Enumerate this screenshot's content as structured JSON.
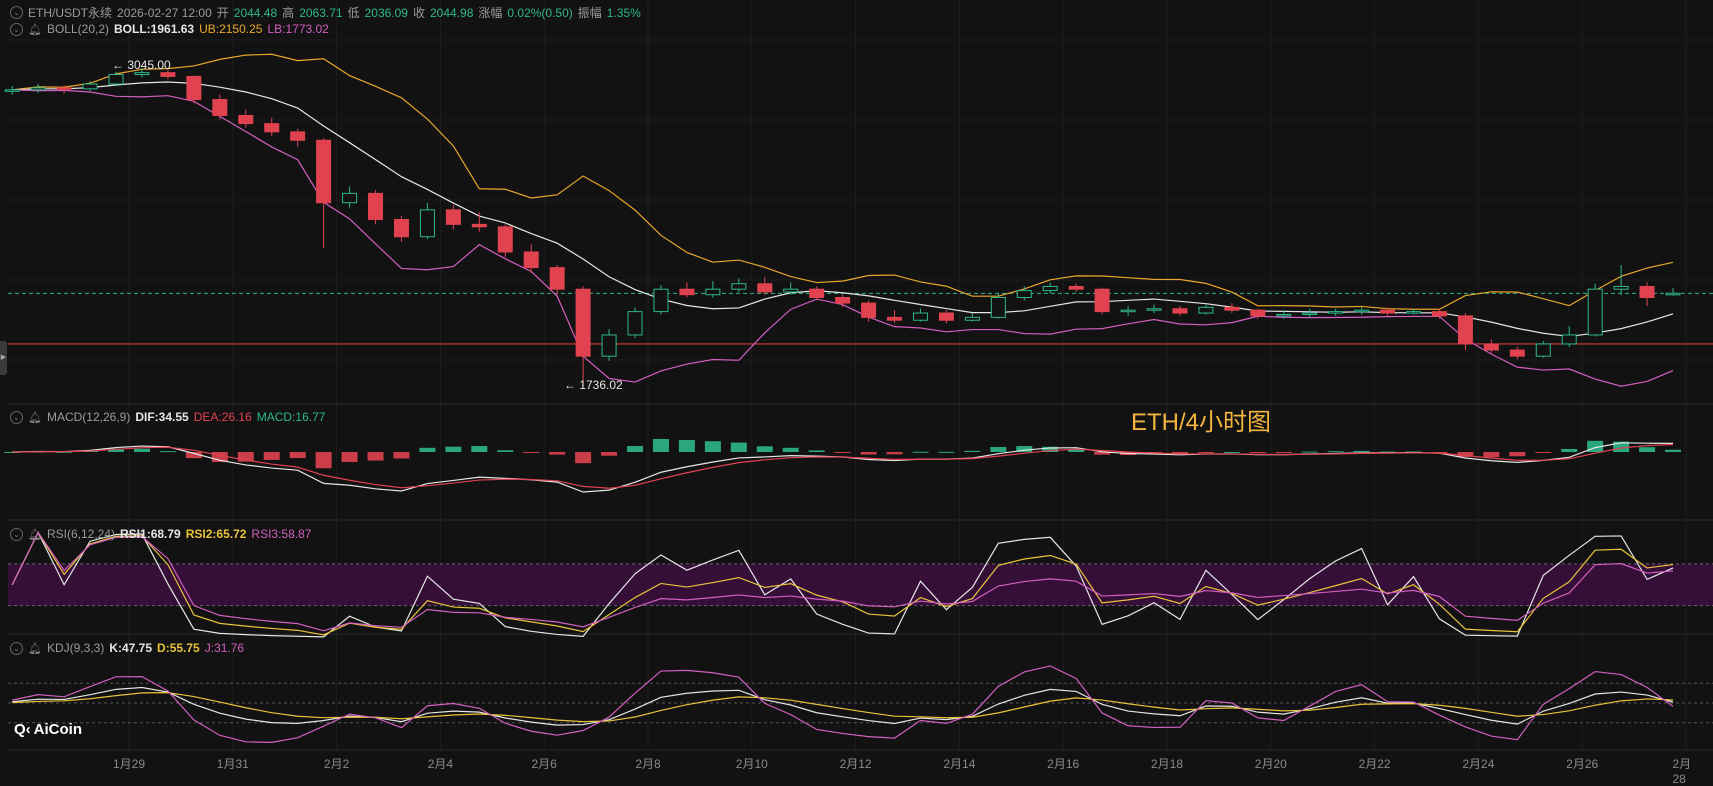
{
  "header": {
    "symbol": "ETH/USDT永续",
    "datetime": "2026-02-27 12:00",
    "open_label": "开",
    "open": "2044.48",
    "high_label": "高",
    "high": "2063.71",
    "low_label": "低",
    "low": "2036.09",
    "close_label": "收",
    "close": "2044.98",
    "change_label": "涨幅",
    "change": "0.02%(0.50)",
    "amplitude_label": "振幅",
    "amplitude": "1.35%"
  },
  "indicators": {
    "boll": {
      "name": "BOLL(20,2)",
      "mid": "BOLL:1961.63",
      "ub": "UB:2150.25",
      "lb": "LB:1773.02"
    },
    "macd": {
      "name": "MACD(12,26,9)",
      "dif": "DIF:34.55",
      "dea": "DEA:26.16",
      "macd": "MACD:16.77"
    },
    "rsi": {
      "name": "RSI(6,12,24)",
      "rsi1": "RSI1:68.79",
      "rsi2": "RSI2:65.72",
      "rsi3": "RSI3:58.87"
    },
    "kdj": {
      "name": "KDJ(9,3,3)",
      "k": "K:47.75",
      "d": "D:55.75",
      "j": "J:31.76"
    }
  },
  "annotations": {
    "overlay_title": "ETH/4小时图",
    "max_marker": "← 3045.00",
    "min_marker": "← 1736.02"
  },
  "logo": "AiCoin",
  "colors": {
    "up": "#2eb88a",
    "down": "#e0424f",
    "boll_mid": "#e6e6e6",
    "boll_ub": "#e9a72a",
    "boll_lb": "#d35fc0",
    "overlay": "#f4b53f"
  },
  "chart_data": {
    "type": "candlestick",
    "price_scale": "log",
    "current_price": 2044.98,
    "reference_line": 1870,
    "x_tick_labels": [
      "1月29",
      "1月31",
      "2月2",
      "2月4",
      "2月6",
      "2月8",
      "2月10",
      "2月12",
      "2月14",
      "2月16",
      "2月18",
      "2月20",
      "2月22",
      "2月24",
      "2月26",
      "2月28"
    ],
    "candles_ohlc": [
      [
        2925,
        2950,
        2905,
        2930
      ],
      [
        2930,
        2960,
        2915,
        2940
      ],
      [
        2940,
        2955,
        2910,
        2935
      ],
      [
        2935,
        2975,
        2925,
        2960
      ],
      [
        2960,
        3025,
        2950,
        3010
      ],
      [
        3010,
        3045,
        2995,
        3020
      ],
      [
        3020,
        3035,
        2985,
        3000
      ],
      [
        3000,
        3005,
        2860,
        2880
      ],
      [
        2880,
        2905,
        2780,
        2800
      ],
      [
        2800,
        2830,
        2740,
        2760
      ],
      [
        2760,
        2790,
        2700,
        2720
      ],
      [
        2720,
        2735,
        2650,
        2680
      ],
      [
        2680,
        2690,
        2215,
        2400
      ],
      [
        2400,
        2470,
        2380,
        2440
      ],
      [
        2440,
        2455,
        2310,
        2330
      ],
      [
        2330,
        2345,
        2240,
        2260
      ],
      [
        2260,
        2400,
        2250,
        2370
      ],
      [
        2370,
        2390,
        2290,
        2310
      ],
      [
        2310,
        2360,
        2280,
        2300
      ],
      [
        2300,
        2310,
        2180,
        2200
      ],
      [
        2200,
        2230,
        2120,
        2140
      ],
      [
        2140,
        2150,
        2040,
        2060
      ],
      [
        2060,
        2070,
        1736.02,
        1830
      ],
      [
        1830,
        1920,
        1815,
        1900
      ],
      [
        1900,
        1995,
        1890,
        1980
      ],
      [
        1980,
        2075,
        1970,
        2060
      ],
      [
        2060,
        2085,
        2030,
        2040
      ],
      [
        2040,
        2090,
        2030,
        2060
      ],
      [
        2060,
        2100,
        2050,
        2080
      ],
      [
        2080,
        2105,
        2040,
        2050
      ],
      [
        2050,
        2085,
        2040,
        2060
      ],
      [
        2060,
        2070,
        2020,
        2030
      ],
      [
        2030,
        2040,
        1995,
        2010
      ],
      [
        2010,
        2020,
        1945,
        1960
      ],
      [
        1960,
        1985,
        1940,
        1950
      ],
      [
        1950,
        1990,
        1945,
        1975
      ],
      [
        1975,
        1985,
        1940,
        1950
      ],
      [
        1950,
        1975,
        1945,
        1960
      ],
      [
        1960,
        2045,
        1955,
        2030
      ],
      [
        2030,
        2070,
        2020,
        2055
      ],
      [
        2055,
        2085,
        2045,
        2070
      ],
      [
        2070,
        2080,
        2050,
        2060
      ],
      [
        2060,
        2065,
        1970,
        1980
      ],
      [
        1980,
        2000,
        1965,
        1985
      ],
      [
        1985,
        2005,
        1975,
        1990
      ],
      [
        1990,
        2000,
        1965,
        1975
      ],
      [
        1975,
        2005,
        1970,
        1995
      ],
      [
        1995,
        2010,
        1975,
        1985
      ],
      [
        1985,
        1990,
        1955,
        1965
      ],
      [
        1965,
        1985,
        1955,
        1970
      ],
      [
        1970,
        1990,
        1960,
        1975
      ],
      [
        1975,
        1990,
        1965,
        1980
      ],
      [
        1980,
        1995,
        1970,
        1985
      ],
      [
        1985,
        1995,
        1965,
        1975
      ],
      [
        1975,
        1990,
        1970,
        1980
      ],
      [
        1980,
        1990,
        1955,
        1965
      ],
      [
        1965,
        1975,
        1850,
        1870
      ],
      [
        1870,
        1885,
        1840,
        1850
      ],
      [
        1850,
        1860,
        1820,
        1830
      ],
      [
        1830,
        1880,
        1825,
        1870
      ],
      [
        1870,
        1930,
        1860,
        1900
      ],
      [
        1900,
        2080,
        1895,
        2060
      ],
      [
        2060,
        2150,
        2040,
        2070
      ],
      [
        2070,
        2085,
        2000,
        2030
      ],
      [
        2044.48,
        2063.71,
        2036.09,
        2044.98
      ]
    ]
  }
}
